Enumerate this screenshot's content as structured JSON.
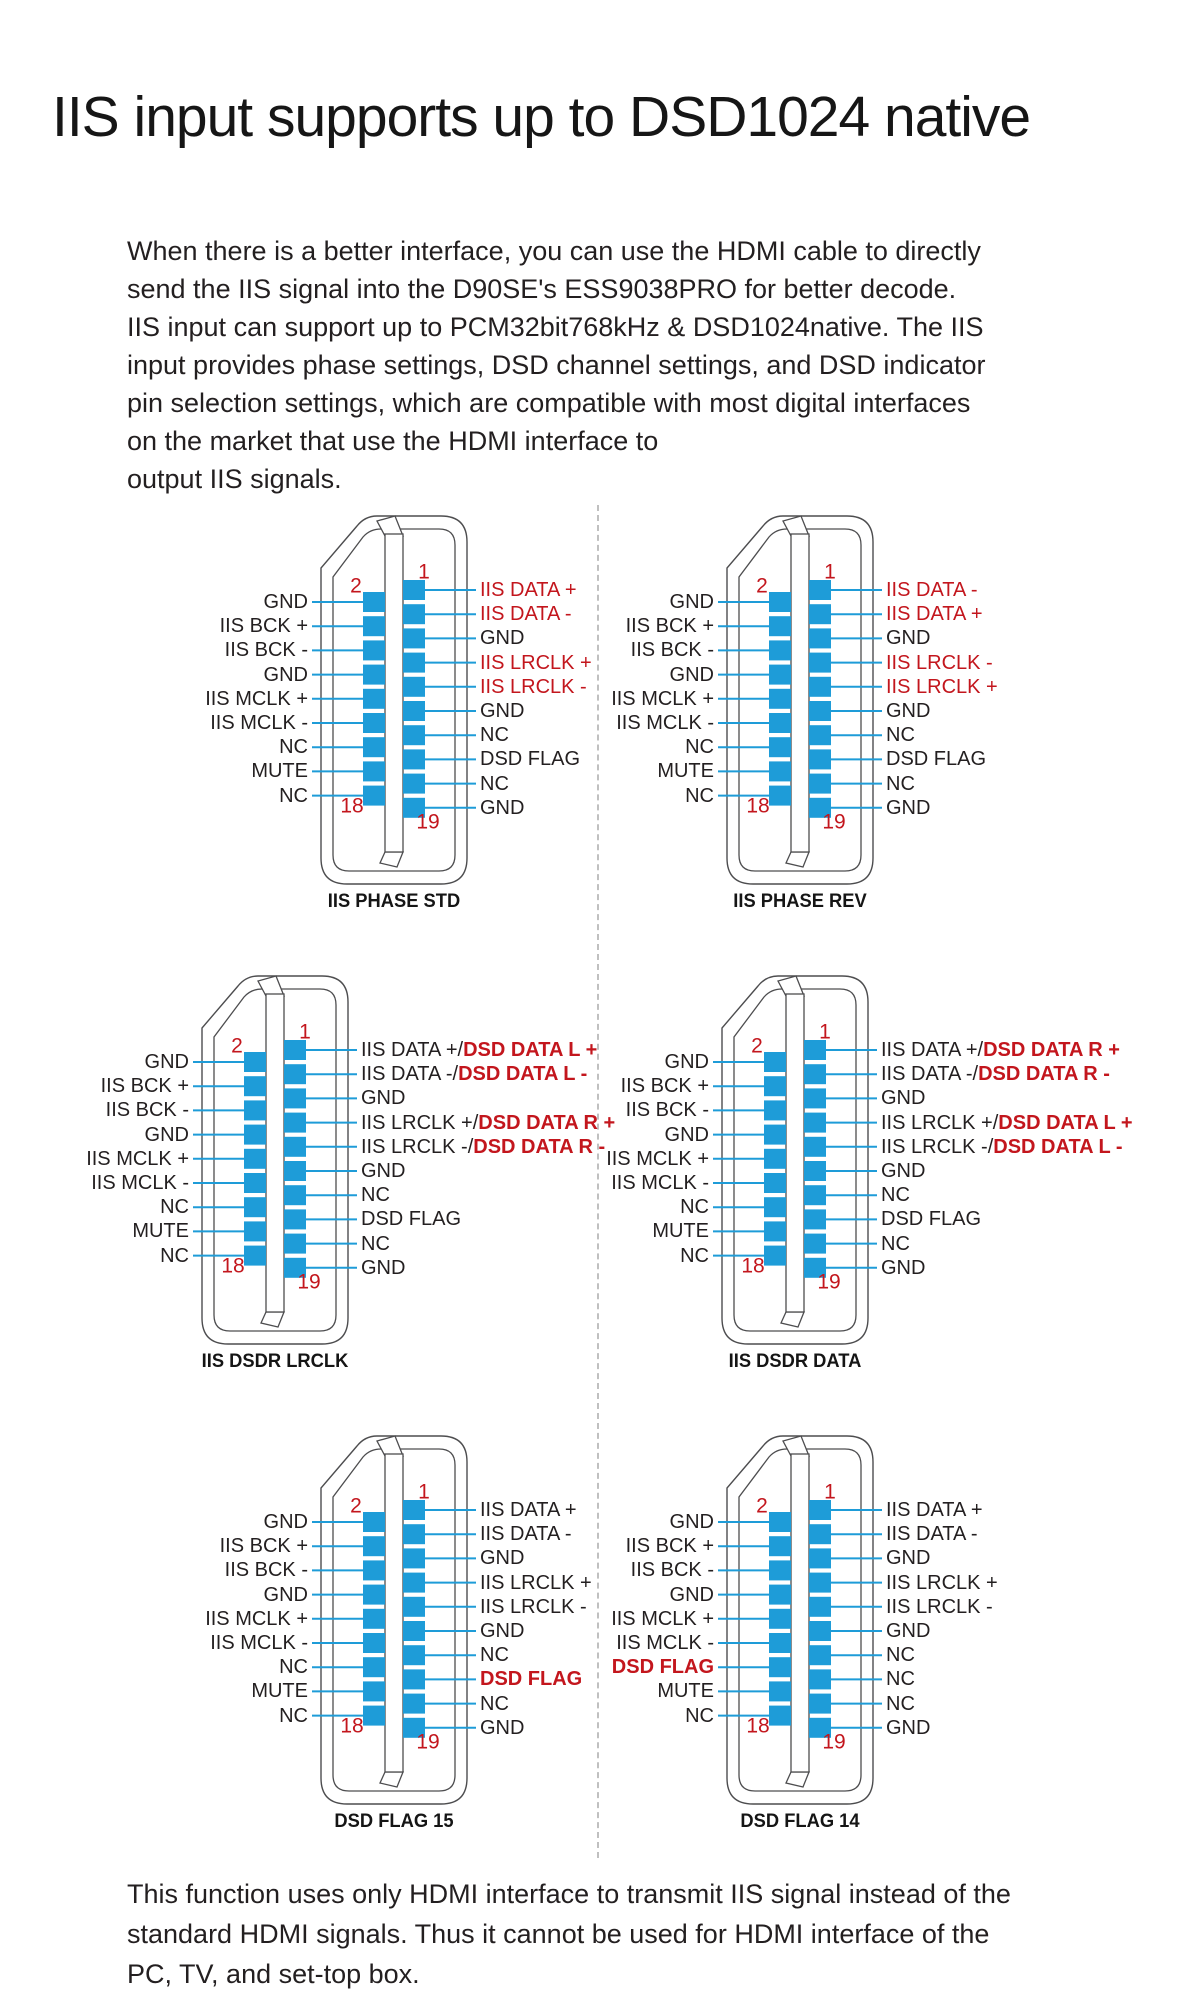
{
  "page": {
    "title": "IIS input supports up to DSD1024 native",
    "intro_lines": [
      "When there is a better interface, you can use the HDMI cable to directly",
      "send the IIS signal into the D90SE's ESS9038PRO for better decode.",
      "IIS input can support up to PCM32bit768kHz & DSD1024native. The IIS",
      "input provides phase settings, DSD channel settings, and DSD indicator",
      "pin selection settings, which are compatible with most digital interfaces",
      "on the market that use the HDMI interface to",
      "output IIS signals."
    ],
    "footer_lines": [
      "This function uses only HDMI interface to transmit IIS signal instead of the",
      "standard HDMI signals. Thus it cannot be used for HDMI interface of the",
      "PC, TV, and set-top box."
    ]
  },
  "colors": {
    "pin_blue": "#1E9CD8",
    "accent_red": "#C3161D",
    "text_black": "#231F20",
    "outline_gray": "#4D4D4F",
    "divider_gray": "#ABABAB"
  },
  "pin_numbers": {
    "top_left": "2",
    "top_right": "1",
    "bottom_left": "18",
    "bottom_right": "19"
  },
  "diagrams": [
    {
      "caption": "IIS PHASE STD",
      "left_pins": [
        {
          "parts": [
            {
              "t": "GND",
              "s": "k"
            }
          ]
        },
        {
          "parts": [
            {
              "t": "IIS BCK +",
              "s": "k"
            }
          ]
        },
        {
          "parts": [
            {
              "t": "IIS BCK -",
              "s": "k"
            }
          ]
        },
        {
          "parts": [
            {
              "t": "GND",
              "s": "k"
            }
          ]
        },
        {
          "parts": [
            {
              "t": "IIS MCLK +",
              "s": "k"
            }
          ]
        },
        {
          "parts": [
            {
              "t": "IIS MCLK -",
              "s": "k"
            }
          ]
        },
        {
          "parts": [
            {
              "t": "NC",
              "s": "k"
            }
          ]
        },
        {
          "parts": [
            {
              "t": "MUTE",
              "s": "k"
            }
          ]
        },
        {
          "parts": [
            {
              "t": "NC",
              "s": "k"
            }
          ]
        }
      ],
      "right_pins": [
        {
          "parts": [
            {
              "t": "IIS DATA +",
              "s": "r"
            }
          ]
        },
        {
          "parts": [
            {
              "t": "IIS DATA -",
              "s": "r"
            }
          ]
        },
        {
          "parts": [
            {
              "t": "GND",
              "s": "k"
            }
          ]
        },
        {
          "parts": [
            {
              "t": "IIS LRCLK +",
              "s": "r"
            }
          ]
        },
        {
          "parts": [
            {
              "t": "IIS LRCLK -",
              "s": "r"
            }
          ]
        },
        {
          "parts": [
            {
              "t": "GND",
              "s": "k"
            }
          ]
        },
        {
          "parts": [
            {
              "t": "NC",
              "s": "k"
            }
          ]
        },
        {
          "parts": [
            {
              "t": "DSD FLAG",
              "s": "k"
            }
          ]
        },
        {
          "parts": [
            {
              "t": "NC",
              "s": "k"
            }
          ]
        },
        {
          "parts": [
            {
              "t": "GND",
              "s": "k"
            }
          ]
        }
      ]
    },
    {
      "caption": "IIS PHASE REV",
      "left_pins": [
        {
          "parts": [
            {
              "t": "GND",
              "s": "k"
            }
          ]
        },
        {
          "parts": [
            {
              "t": "IIS BCK +",
              "s": "k"
            }
          ]
        },
        {
          "parts": [
            {
              "t": "IIS BCK -",
              "s": "k"
            }
          ]
        },
        {
          "parts": [
            {
              "t": "GND",
              "s": "k"
            }
          ]
        },
        {
          "parts": [
            {
              "t": "IIS MCLK +",
              "s": "k"
            }
          ]
        },
        {
          "parts": [
            {
              "t": "IIS MCLK -",
              "s": "k"
            }
          ]
        },
        {
          "parts": [
            {
              "t": "NC",
              "s": "k"
            }
          ]
        },
        {
          "parts": [
            {
              "t": "MUTE",
              "s": "k"
            }
          ]
        },
        {
          "parts": [
            {
              "t": "NC",
              "s": "k"
            }
          ]
        }
      ],
      "right_pins": [
        {
          "parts": [
            {
              "t": "IIS DATA -",
              "s": "r"
            }
          ]
        },
        {
          "parts": [
            {
              "t": "IIS DATA +",
              "s": "r"
            }
          ]
        },
        {
          "parts": [
            {
              "t": "GND",
              "s": "k"
            }
          ]
        },
        {
          "parts": [
            {
              "t": "IIS LRCLK -",
              "s": "r"
            }
          ]
        },
        {
          "parts": [
            {
              "t": "IIS LRCLK +",
              "s": "r"
            }
          ]
        },
        {
          "parts": [
            {
              "t": "GND",
              "s": "k"
            }
          ]
        },
        {
          "parts": [
            {
              "t": "NC",
              "s": "k"
            }
          ]
        },
        {
          "parts": [
            {
              "t": "DSD FLAG",
              "s": "k"
            }
          ]
        },
        {
          "parts": [
            {
              "t": "NC",
              "s": "k"
            }
          ]
        },
        {
          "parts": [
            {
              "t": "GND",
              "s": "k"
            }
          ]
        }
      ]
    },
    {
      "caption": "IIS DSDR LRCLK",
      "left_pins": [
        {
          "parts": [
            {
              "t": "GND",
              "s": "k"
            }
          ]
        },
        {
          "parts": [
            {
              "t": "IIS BCK +",
              "s": "k"
            }
          ]
        },
        {
          "parts": [
            {
              "t": "IIS BCK -",
              "s": "k"
            }
          ]
        },
        {
          "parts": [
            {
              "t": "GND",
              "s": "k"
            }
          ]
        },
        {
          "parts": [
            {
              "t": "IIS MCLK +",
              "s": "k"
            }
          ]
        },
        {
          "parts": [
            {
              "t": "IIS MCLK -",
              "s": "k"
            }
          ]
        },
        {
          "parts": [
            {
              "t": "NC",
              "s": "k"
            }
          ]
        },
        {
          "parts": [
            {
              "t": "MUTE",
              "s": "k"
            }
          ]
        },
        {
          "parts": [
            {
              "t": "NC",
              "s": "k"
            }
          ]
        }
      ],
      "right_pins": [
        {
          "parts": [
            {
              "t": "IIS DATA +/",
              "s": "k"
            },
            {
              "t": "DSD DATA L +",
              "s": "rb"
            }
          ]
        },
        {
          "parts": [
            {
              "t": "IIS DATA -/",
              "s": "k"
            },
            {
              "t": "DSD DATA L -",
              "s": "rb"
            }
          ]
        },
        {
          "parts": [
            {
              "t": "GND",
              "s": "k"
            }
          ]
        },
        {
          "parts": [
            {
              "t": "IIS LRCLK +/",
              "s": "k"
            },
            {
              "t": "DSD DATA R +",
              "s": "rb"
            }
          ]
        },
        {
          "parts": [
            {
              "t": "IIS LRCLK -/",
              "s": "k"
            },
            {
              "t": "DSD DATA R -",
              "s": "rb"
            }
          ]
        },
        {
          "parts": [
            {
              "t": "GND",
              "s": "k"
            }
          ]
        },
        {
          "parts": [
            {
              "t": "NC",
              "s": "k"
            }
          ]
        },
        {
          "parts": [
            {
              "t": "DSD FLAG",
              "s": "k"
            }
          ]
        },
        {
          "parts": [
            {
              "t": "NC",
              "s": "k"
            }
          ]
        },
        {
          "parts": [
            {
              "t": "GND",
              "s": "k"
            }
          ]
        }
      ]
    },
    {
      "caption": "IIS DSDR DATA",
      "left_pins": [
        {
          "parts": [
            {
              "t": "GND",
              "s": "k"
            }
          ]
        },
        {
          "parts": [
            {
              "t": "IIS BCK +",
              "s": "k"
            }
          ]
        },
        {
          "parts": [
            {
              "t": "IIS BCK -",
              "s": "k"
            }
          ]
        },
        {
          "parts": [
            {
              "t": "GND",
              "s": "k"
            }
          ]
        },
        {
          "parts": [
            {
              "t": "IIS MCLK +",
              "s": "k"
            }
          ]
        },
        {
          "parts": [
            {
              "t": "IIS MCLK -",
              "s": "k"
            }
          ]
        },
        {
          "parts": [
            {
              "t": "NC",
              "s": "k"
            }
          ]
        },
        {
          "parts": [
            {
              "t": "MUTE",
              "s": "k"
            }
          ]
        },
        {
          "parts": [
            {
              "t": "NC",
              "s": "k"
            }
          ]
        }
      ],
      "right_pins": [
        {
          "parts": [
            {
              "t": "IIS DATA +/",
              "s": "k"
            },
            {
              "t": "DSD DATA R +",
              "s": "rb"
            }
          ]
        },
        {
          "parts": [
            {
              "t": "IIS DATA -/",
              "s": "k"
            },
            {
              "t": "DSD DATA R -",
              "s": "rb"
            }
          ]
        },
        {
          "parts": [
            {
              "t": "GND",
              "s": "k"
            }
          ]
        },
        {
          "parts": [
            {
              "t": "IIS LRCLK +/",
              "s": "k"
            },
            {
              "t": "DSD DATA L +",
              "s": "rb"
            }
          ]
        },
        {
          "parts": [
            {
              "t": "IIS LRCLK -/",
              "s": "k"
            },
            {
              "t": "DSD DATA L -",
              "s": "rb"
            }
          ]
        },
        {
          "parts": [
            {
              "t": "GND",
              "s": "k"
            }
          ]
        },
        {
          "parts": [
            {
              "t": "NC",
              "s": "k"
            }
          ]
        },
        {
          "parts": [
            {
              "t": "DSD FLAG",
              "s": "k"
            }
          ]
        },
        {
          "parts": [
            {
              "t": "NC",
              "s": "k"
            }
          ]
        },
        {
          "parts": [
            {
              "t": "GND",
              "s": "k"
            }
          ]
        }
      ]
    },
    {
      "caption": "DSD FLAG 15",
      "left_pins": [
        {
          "parts": [
            {
              "t": "GND",
              "s": "k"
            }
          ]
        },
        {
          "parts": [
            {
              "t": "IIS BCK +",
              "s": "k"
            }
          ]
        },
        {
          "parts": [
            {
              "t": "IIS BCK -",
              "s": "k"
            }
          ]
        },
        {
          "parts": [
            {
              "t": "GND",
              "s": "k"
            }
          ]
        },
        {
          "parts": [
            {
              "t": "IIS MCLK +",
              "s": "k"
            }
          ]
        },
        {
          "parts": [
            {
              "t": "IIS MCLK -",
              "s": "k"
            }
          ]
        },
        {
          "parts": [
            {
              "t": "NC",
              "s": "k"
            }
          ]
        },
        {
          "parts": [
            {
              "t": "MUTE",
              "s": "k"
            }
          ]
        },
        {
          "parts": [
            {
              "t": "NC",
              "s": "k"
            }
          ]
        }
      ],
      "right_pins": [
        {
          "parts": [
            {
              "t": "IIS DATA +",
              "s": "k"
            }
          ]
        },
        {
          "parts": [
            {
              "t": "IIS DATA -",
              "s": "k"
            }
          ]
        },
        {
          "parts": [
            {
              "t": "GND",
              "s": "k"
            }
          ]
        },
        {
          "parts": [
            {
              "t": "IIS LRCLK +",
              "s": "k"
            }
          ]
        },
        {
          "parts": [
            {
              "t": "IIS LRCLK -",
              "s": "k"
            }
          ]
        },
        {
          "parts": [
            {
              "t": "GND",
              "s": "k"
            }
          ]
        },
        {
          "parts": [
            {
              "t": "NC",
              "s": "k"
            }
          ]
        },
        {
          "parts": [
            {
              "t": "DSD FLAG",
              "s": "rb"
            }
          ]
        },
        {
          "parts": [
            {
              "t": "NC",
              "s": "k"
            }
          ]
        },
        {
          "parts": [
            {
              "t": "GND",
              "s": "k"
            }
          ]
        }
      ]
    },
    {
      "caption": "DSD FLAG 14",
      "left_pins": [
        {
          "parts": [
            {
              "t": "GND",
              "s": "k"
            }
          ]
        },
        {
          "parts": [
            {
              "t": "IIS BCK +",
              "s": "k"
            }
          ]
        },
        {
          "parts": [
            {
              "t": "IIS BCK -",
              "s": "k"
            }
          ]
        },
        {
          "parts": [
            {
              "t": "GND",
              "s": "k"
            }
          ]
        },
        {
          "parts": [
            {
              "t": "IIS MCLK +",
              "s": "k"
            }
          ]
        },
        {
          "parts": [
            {
              "t": "IIS MCLK -",
              "s": "k"
            }
          ]
        },
        {
          "parts": [
            {
              "t": "DSD FLAG",
              "s": "rb"
            }
          ]
        },
        {
          "parts": [
            {
              "t": "MUTE",
              "s": "k"
            }
          ]
        },
        {
          "parts": [
            {
              "t": "NC",
              "s": "k"
            }
          ]
        }
      ],
      "right_pins": [
        {
          "parts": [
            {
              "t": "IIS DATA +",
              "s": "k"
            }
          ]
        },
        {
          "parts": [
            {
              "t": "IIS DATA -",
              "s": "k"
            }
          ]
        },
        {
          "parts": [
            {
              "t": "GND",
              "s": "k"
            }
          ]
        },
        {
          "parts": [
            {
              "t": "IIS LRCLK +",
              "s": "k"
            }
          ]
        },
        {
          "parts": [
            {
              "t": "IIS LRCLK -",
              "s": "k"
            }
          ]
        },
        {
          "parts": [
            {
              "t": "GND",
              "s": "k"
            }
          ]
        },
        {
          "parts": [
            {
              "t": "NC",
              "s": "k"
            }
          ]
        },
        {
          "parts": [
            {
              "t": "NC",
              "s": "k"
            }
          ]
        },
        {
          "parts": [
            {
              "t": "NC",
              "s": "k"
            }
          ]
        },
        {
          "parts": [
            {
              "t": "GND",
              "s": "k"
            }
          ]
        }
      ]
    }
  ]
}
